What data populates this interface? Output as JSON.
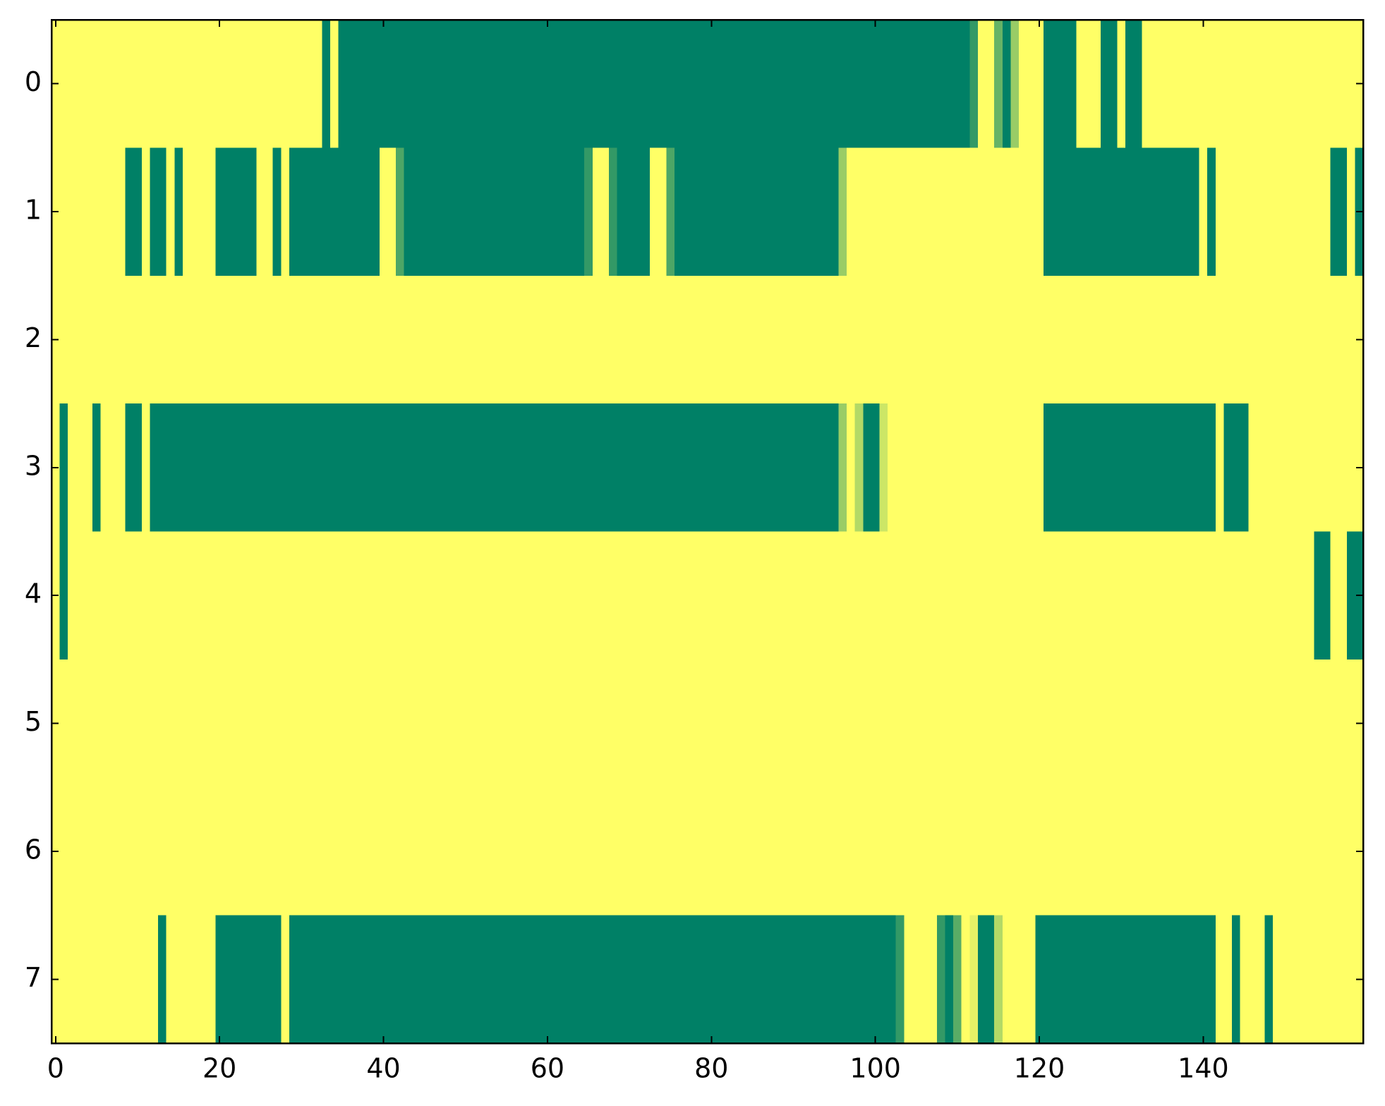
{
  "chart_data": {
    "type": "heatmap",
    "colormap": "summer",
    "xlim": [
      -0.5,
      159.5
    ],
    "ylim": [
      7.5,
      -0.5
    ],
    "xticks": [
      0,
      20,
      40,
      60,
      80,
      100,
      120,
      140
    ],
    "yticks": [
      0,
      1,
      2,
      3,
      4,
      5,
      6,
      7
    ],
    "values": [
      [
        1,
        1,
        1,
        1,
        1,
        1,
        1,
        1,
        1,
        1,
        1,
        1,
        1,
        1,
        1,
        1,
        1,
        1,
        1,
        1,
        1,
        1,
        1,
        1,
        1,
        1,
        1,
        1,
        1,
        1,
        1,
        1,
        1,
        0,
        1,
        0,
        0,
        0,
        0,
        0,
        0,
        0,
        0,
        0,
        0,
        0,
        0,
        0,
        0,
        0,
        0,
        0,
        0,
        0,
        0,
        0,
        0,
        0,
        0,
        0,
        0,
        0,
        0,
        0,
        0,
        0,
        0,
        0,
        0,
        0,
        0,
        0,
        0,
        0,
        0,
        0,
        0,
        0,
        0,
        0,
        0,
        0,
        0,
        0,
        0,
        0,
        0,
        0,
        0,
        0,
        0,
        0,
        0,
        0,
        0,
        0,
        0,
        0,
        0,
        0,
        0,
        0,
        0,
        0,
        0,
        0,
        0,
        0,
        0,
        0,
        0,
        0,
        0.2,
        1,
        1,
        0.4,
        0,
        0.6,
        1,
        1,
        1,
        0,
        0,
        0,
        0,
        1,
        1,
        1,
        0,
        0,
        1,
        0,
        0,
        1,
        1,
        1,
        1,
        1,
        1,
        1,
        1,
        1,
        1,
        1,
        1,
        1,
        1,
        1,
        1,
        1,
        1,
        1,
        1,
        1,
        1,
        1,
        1,
        1,
        1,
        1
      ],
      [
        1,
        1,
        1,
        1,
        1,
        1,
        1,
        1,
        1,
        0,
        0,
        1,
        0,
        0,
        1,
        0,
        1,
        1,
        1,
        1,
        0,
        0,
        0,
        0,
        0,
        1,
        1,
        0,
        1,
        0,
        0,
        0,
        0,
        0,
        0,
        0,
        0,
        0,
        0,
        0,
        1,
        1,
        0.3,
        0,
        0,
        0,
        0,
        0,
        0,
        0,
        0,
        0,
        0,
        0,
        0,
        0,
        0,
        0,
        0,
        0,
        0,
        0,
        0,
        0,
        0,
        0.2,
        1,
        1,
        0.2,
        0,
        0,
        0,
        0,
        1,
        1,
        0.3,
        0,
        0,
        0,
        0,
        0,
        0,
        0,
        0,
        0,
        0,
        0,
        0,
        0,
        0,
        0,
        0,
        0,
        0,
        0,
        0,
        0.6,
        1,
        1,
        1,
        1,
        1,
        1,
        1,
        1,
        1,
        1,
        1,
        1,
        1,
        1,
        1,
        1,
        1,
        1,
        1,
        1,
        1,
        1,
        1,
        1,
        0,
        0,
        0,
        0,
        0,
        0,
        0,
        0,
        0,
        0,
        0,
        0,
        0,
        0,
        0,
        0,
        0,
        0,
        0,
        1,
        0,
        1,
        1,
        1,
        1,
        1,
        1,
        1,
        1,
        1,
        1,
        1,
        1,
        1,
        1,
        0,
        0,
        1,
        0
      ],
      [
        1,
        1,
        1,
        1,
        1,
        1,
        1,
        1,
        1,
        1,
        1,
        1,
        1,
        1,
        1,
        1,
        1,
        1,
        1,
        1,
        1,
        1,
        1,
        1,
        1,
        1,
        1,
        1,
        1,
        1,
        1,
        1,
        1,
        1,
        1,
        1,
        1,
        1,
        1,
        1,
        1,
        1,
        1,
        1,
        1,
        1,
        1,
        1,
        1,
        1,
        1,
        1,
        1,
        1,
        1,
        1,
        1,
        1,
        1,
        1,
        1,
        1,
        1,
        1,
        1,
        1,
        1,
        1,
        1,
        1,
        1,
        1,
        1,
        1,
        1,
        1,
        1,
        1,
        1,
        1,
        1,
        1,
        1,
        1,
        1,
        1,
        1,
        1,
        1,
        1,
        1,
        1,
        1,
        1,
        1,
        1,
        1,
        1,
        1,
        1,
        1,
        1,
        1,
        1,
        1,
        1,
        1,
        1,
        1,
        1,
        1,
        1,
        1,
        1,
        1,
        1,
        1,
        1,
        1,
        1,
        1,
        1,
        1,
        1,
        1,
        1,
        1,
        1,
        1,
        1,
        1,
        1,
        1,
        1,
        1,
        1,
        1,
        1,
        1,
        1,
        1,
        1,
        1,
        1,
        1,
        1,
        1,
        1,
        1,
        1,
        1,
        1,
        1,
        1,
        1,
        1,
        1,
        1,
        1,
        1
      ],
      [
        1,
        0,
        1,
        1,
        1,
        0,
        1,
        1,
        1,
        0,
        0,
        1,
        0,
        0,
        0,
        0,
        0,
        0,
        0,
        0,
        0,
        0,
        0,
        0,
        0,
        0,
        0,
        0,
        0,
        0,
        0,
        0,
        0,
        0,
        0,
        0,
        0,
        0,
        0,
        0,
        0,
        0,
        0,
        0,
        0,
        0,
        0,
        0,
        0,
        0,
        0,
        0,
        0,
        0,
        0,
        0,
        0,
        0,
        0,
        0,
        0,
        0,
        0,
        0,
        0,
        0,
        0,
        0,
        0,
        0,
        0,
        0,
        0,
        0,
        0,
        0,
        0,
        0,
        0,
        0,
        0,
        0,
        0,
        0,
        0,
        0,
        0,
        0,
        0,
        0,
        0,
        0,
        0,
        0,
        0,
        0,
        0.6,
        1,
        0.7,
        0,
        0,
        0.8,
        1,
        1,
        1,
        1,
        1,
        1,
        1,
        1,
        1,
        1,
        1,
        1,
        1,
        1,
        1,
        1,
        1,
        1,
        1,
        0,
        0,
        0,
        0,
        0,
        0,
        0,
        0,
        0,
        0,
        0,
        0,
        0,
        0,
        0,
        0,
        0,
        0,
        0,
        0,
        0,
        1,
        0,
        0,
        0,
        1,
        1,
        1,
        1,
        1,
        1,
        1,
        1,
        1,
        1,
        1,
        1,
        1,
        1
      ],
      [
        1,
        0,
        1,
        1,
        1,
        1,
        1,
        1,
        1,
        1,
        1,
        1,
        1,
        1,
        1,
        1,
        1,
        1,
        1,
        1,
        1,
        1,
        1,
        1,
        1,
        1,
        1,
        1,
        1,
        1,
        1,
        1,
        1,
        1,
        1,
        1,
        1,
        1,
        1,
        1,
        1,
        1,
        1,
        1,
        1,
        1,
        1,
        1,
        1,
        1,
        1,
        1,
        1,
        1,
        1,
        1,
        1,
        1,
        1,
        1,
        1,
        1,
        1,
        1,
        1,
        1,
        1,
        1,
        1,
        1,
        1,
        1,
        1,
        1,
        1,
        1,
        1,
        1,
        1,
        1,
        1,
        1,
        1,
        1,
        1,
        1,
        1,
        1,
        1,
        1,
        1,
        1,
        1,
        1,
        1,
        1,
        1,
        1,
        1,
        1,
        1,
        1,
        1,
        1,
        1,
        1,
        1,
        1,
        1,
        1,
        1,
        1,
        1,
        1,
        1,
        1,
        1,
        1,
        1,
        1,
        1,
        1,
        1,
        1,
        1,
        1,
        1,
        1,
        1,
        1,
        1,
        1,
        1,
        1,
        1,
        1,
        1,
        1,
        1,
        1,
        1,
        1,
        1,
        1,
        1,
        1,
        1,
        1,
        1,
        1,
        1,
        1,
        1,
        1,
        0,
        0,
        1,
        1,
        0,
        0
      ],
      [
        1,
        1,
        1,
        1,
        1,
        1,
        1,
        1,
        1,
        1,
        1,
        1,
        1,
        1,
        1,
        1,
        1,
        1,
        1,
        1,
        1,
        1,
        1,
        1,
        1,
        1,
        1,
        1,
        1,
        1,
        1,
        1,
        1,
        1,
        1,
        1,
        1,
        1,
        1,
        1,
        1,
        1,
        1,
        1,
        1,
        1,
        1,
        1,
        1,
        1,
        1,
        1,
        1,
        1,
        1,
        1,
        1,
        1,
        1,
        1,
        1,
        1,
        1,
        1,
        1,
        1,
        1,
        1,
        1,
        1,
        1,
        1,
        1,
        1,
        1,
        1,
        1,
        1,
        1,
        1,
        1,
        1,
        1,
        1,
        1,
        1,
        1,
        1,
        1,
        1,
        1,
        1,
        1,
        1,
        1,
        1,
        1,
        1,
        1,
        1,
        1,
        1,
        1,
        1,
        1,
        1,
        1,
        1,
        1,
        1,
        1,
        1,
        1,
        1,
        1,
        1,
        1,
        1,
        1,
        1,
        1,
        1,
        1,
        1,
        1,
        1,
        1,
        1,
        1,
        1,
        1,
        1,
        1,
        1,
        1,
        1,
        1,
        1,
        1,
        1,
        1,
        1,
        1,
        1,
        1,
        1,
        1,
        1,
        1,
        1,
        1,
        1,
        1,
        1,
        1,
        1,
        1,
        1,
        1,
        1
      ],
      [
        1,
        1,
        1,
        1,
        1,
        1,
        1,
        1,
        1,
        1,
        1,
        1,
        1,
        1,
        1,
        1,
        1,
        1,
        1,
        1,
        1,
        1,
        1,
        1,
        1,
        1,
        1,
        1,
        1,
        1,
        1,
        1,
        1,
        1,
        1,
        1,
        1,
        1,
        1,
        1,
        1,
        1,
        1,
        1,
        1,
        1,
        1,
        1,
        1,
        1,
        1,
        1,
        1,
        1,
        1,
        1,
        1,
        1,
        1,
        1,
        1,
        1,
        1,
        1,
        1,
        1,
        1,
        1,
        1,
        1,
        1,
        1,
        1,
        1,
        1,
        1,
        1,
        1,
        1,
        1,
        1,
        1,
        1,
        1,
        1,
        1,
        1,
        1,
        1,
        1,
        1,
        1,
        1,
        1,
        1,
        1,
        1,
        1,
        1,
        1,
        1,
        1,
        1,
        1,
        1,
        1,
        1,
        1,
        1,
        1,
        1,
        1,
        1,
        1,
        1,
        1,
        1,
        1,
        1,
        1,
        1,
        1,
        1,
        1,
        1,
        1,
        1,
        1,
        1,
        1,
        1,
        1,
        1,
        1,
        1,
        1,
        1,
        1,
        1,
        1,
        1,
        1,
        1,
        1,
        1,
        1,
        1,
        1,
        1,
        1,
        1,
        1,
        1,
        1,
        1,
        1,
        1,
        1,
        1,
        1
      ],
      [
        1,
        1,
        1,
        1,
        1,
        1,
        1,
        1,
        1,
        1,
        1,
        1,
        1,
        0,
        1,
        1,
        1,
        1,
        1,
        1,
        0,
        0,
        0,
        0,
        0,
        0,
        0,
        0,
        1,
        0,
        0,
        0,
        0,
        0,
        0,
        0,
        0,
        0,
        0,
        0,
        0,
        0,
        0,
        0,
        0,
        0,
        0,
        0,
        0,
        0,
        0,
        0,
        0,
        0,
        0,
        0,
        0,
        0,
        0,
        0,
        0,
        0,
        0,
        0,
        0,
        0,
        0,
        0,
        0,
        0,
        0,
        0,
        0,
        0,
        0,
        0,
        0,
        0,
        0,
        0,
        0,
        0,
        0,
        0,
        0,
        0,
        0,
        0,
        0,
        0,
        0,
        0,
        0,
        0,
        0,
        0,
        0,
        0,
        0,
        0,
        0,
        0,
        0,
        0.2,
        1,
        1,
        1,
        1,
        0.2,
        0,
        0.35,
        1,
        0.9,
        0,
        0,
        0.7,
        1,
        1,
        1,
        1,
        0,
        0,
        0,
        0,
        0,
        0,
        0,
        0,
        0,
        0,
        0,
        0,
        0,
        0,
        0,
        0,
        0,
        0,
        0,
        0,
        0,
        0,
        1,
        1,
        0,
        1,
        1,
        1,
        0,
        1,
        1,
        1,
        1,
        1,
        1,
        1,
        1,
        1,
        1,
        1
      ]
    ]
  }
}
